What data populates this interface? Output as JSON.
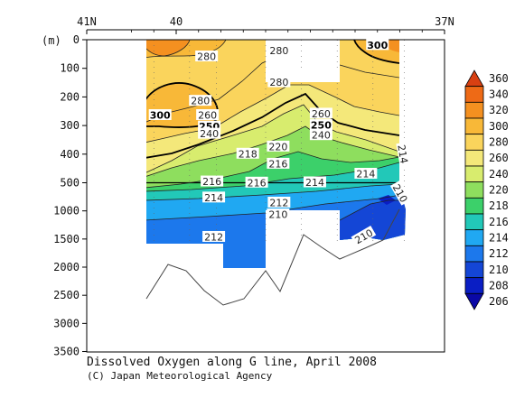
{
  "chart_data": {
    "type": "heatmap",
    "title": "Dissolved Oxygen along G line, April 2008",
    "credit": "(C) Japan Meteorological Agency",
    "ylabel": "(m)",
    "x_ticks": [
      {
        "label": "41N",
        "lat": 41.0
      },
      {
        "label": "40",
        "lat": 40.0
      },
      {
        "label": "37N",
        "lat": 37.0
      }
    ],
    "xlim": [
      41.0,
      37.0
    ],
    "y_ticks_upper": [
      0,
      100,
      200,
      300,
      400,
      500
    ],
    "y_ticks_lower": [
      1000,
      1500,
      2000,
      2500,
      3000,
      3500
    ],
    "y_break_depth": 500,
    "colorbar": {
      "labels": [
        "360",
        "340",
        "320",
        "300",
        "280",
        "260",
        "240",
        "220",
        "218",
        "216",
        "214",
        "212",
        "210",
        "208",
        "206"
      ],
      "colors": [
        "#d84012",
        "#ee6a16",
        "#f49020",
        "#f8b838",
        "#fad45c",
        "#f4e87a",
        "#d8ec6e",
        "#8ede5e",
        "#3cd06a",
        "#22c8b8",
        "#20a8f2",
        "#1c78ec",
        "#1446d6",
        "#0a1ec4",
        "#0a08a6"
      ]
    },
    "contour_labels": [
      {
        "text": "280",
        "lat": 39.66,
        "depth": 60
      },
      {
        "text": "280",
        "lat": 38.85,
        "depth": 40
      },
      {
        "text": "300",
        "lat": 37.75,
        "depth": 20,
        "bold": true
      },
      {
        "text": "280",
        "lat": 38.85,
        "depth": 150
      },
      {
        "text": "280",
        "lat": 39.73,
        "depth": 215
      },
      {
        "text": "300",
        "lat": 40.18,
        "depth": 265,
        "bold": true
      },
      {
        "text": "260",
        "lat": 39.65,
        "depth": 265
      },
      {
        "text": "250",
        "lat": 39.63,
        "depth": 305,
        "bold": true
      },
      {
        "text": "240",
        "lat": 39.63,
        "depth": 330
      },
      {
        "text": "260",
        "lat": 38.38,
        "depth": 260
      },
      {
        "text": "250",
        "lat": 38.38,
        "depth": 300,
        "bold": true
      },
      {
        "text": "240",
        "lat": 38.38,
        "depth": 335
      },
      {
        "text": "220",
        "lat": 38.86,
        "depth": 375
      },
      {
        "text": "218",
        "lat": 39.2,
        "depth": 400
      },
      {
        "text": "216",
        "lat": 38.86,
        "depth": 435
      },
      {
        "text": "214",
        "lat": 37.88,
        "depth": 470
      },
      {
        "text": "214",
        "lat": 37.47,
        "depth": 400,
        "rotate": 80
      },
      {
        "text": "216",
        "lat": 39.6,
        "depth": 497
      },
      {
        "text": "216",
        "lat": 39.1,
        "depth": 505
      },
      {
        "text": "214",
        "lat": 38.45,
        "depth": 500
      },
      {
        "text": "214",
        "lat": 39.58,
        "depth": 770
      },
      {
        "text": "212",
        "lat": 38.85,
        "depth": 860
      },
      {
        "text": "210",
        "lat": 38.86,
        "depth": 1070
      },
      {
        "text": "210",
        "lat": 37.5,
        "depth": 690,
        "rotate": 60
      },
      {
        "text": "212",
        "lat": 39.58,
        "depth": 1470
      },
      {
        "text": "210",
        "lat": 37.9,
        "depth": 1460,
        "rotate": -30
      }
    ]
  }
}
